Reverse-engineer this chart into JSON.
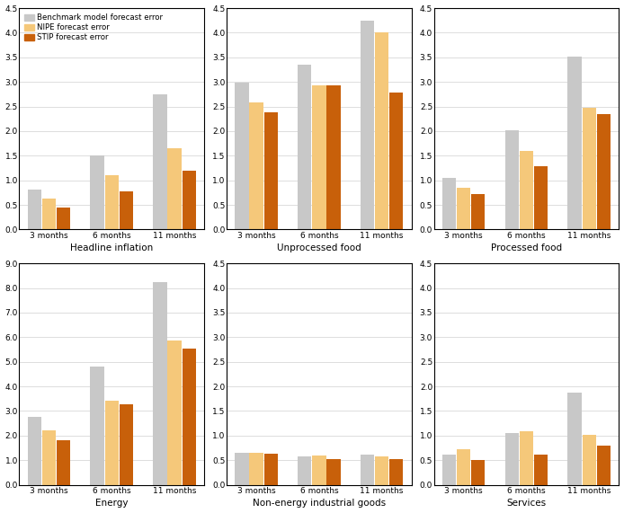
{
  "subplots": [
    {
      "title": "Headline inflation",
      "ylim": [
        0,
        4.5
      ],
      "yticks": [
        0.0,
        0.5,
        1.0,
        1.5,
        2.0,
        2.5,
        3.0,
        3.5,
        4.0,
        4.5
      ],
      "ytick_labels": [
        "0.0",
        "0.5",
        "1.0",
        "1.5",
        "2.0",
        "2.5",
        "3.0",
        "3.5",
        "4.0",
        "4.5"
      ],
      "benchmark": [
        0.82,
        1.5,
        2.75
      ],
      "nipe": [
        0.62,
        1.1,
        1.65
      ],
      "stip": [
        0.45,
        0.77,
        1.2
      ]
    },
    {
      "title": "Unprocessed food",
      "ylim": [
        0,
        4.5
      ],
      "yticks": [
        0.0,
        0.5,
        1.0,
        1.5,
        2.0,
        2.5,
        3.0,
        3.5,
        4.0,
        4.5
      ],
      "ytick_labels": [
        "0.0",
        "0.5",
        "1.0",
        "1.5",
        "2.0",
        "2.5",
        "3.0",
        "3.5",
        "4.0",
        "4.5"
      ],
      "benchmark": [
        2.98,
        3.35,
        4.25
      ],
      "nipe": [
        2.58,
        2.93,
        4.0
      ],
      "stip": [
        2.38,
        2.93,
        2.78
      ]
    },
    {
      "title": "Processed food",
      "ylim": [
        0,
        4.5
      ],
      "yticks": [
        0.0,
        0.5,
        1.0,
        1.5,
        2.0,
        2.5,
        3.0,
        3.5,
        4.0,
        4.5
      ],
      "ytick_labels": [
        "0.0",
        "0.5",
        "1.0",
        "1.5",
        "2.0",
        "2.5",
        "3.0",
        "3.5",
        "4.0",
        "4.5"
      ],
      "benchmark": [
        1.05,
        2.02,
        3.52
      ],
      "nipe": [
        0.85,
        1.6,
        2.48
      ],
      "stip": [
        0.72,
        1.28,
        2.35
      ]
    },
    {
      "title": "Energy",
      "ylim": [
        0,
        9.0
      ],
      "yticks": [
        0.0,
        1.0,
        2.0,
        3.0,
        4.0,
        5.0,
        6.0,
        7.0,
        8.0,
        9.0
      ],
      "ytick_labels": [
        "0.0",
        "1.0",
        "2.0",
        "3.0",
        "4.0",
        "5.0",
        "6.0",
        "7.0",
        "8.0",
        "9.0"
      ],
      "benchmark": [
        2.75,
        4.8,
        8.25
      ],
      "nipe": [
        2.2,
        3.4,
        5.88
      ],
      "stip": [
        1.82,
        3.28,
        5.55
      ]
    },
    {
      "title": "Non-energy industrial goods",
      "ylim": [
        0,
        4.5
      ],
      "yticks": [
        0.0,
        0.5,
        1.0,
        1.5,
        2.0,
        2.5,
        3.0,
        3.5,
        4.0,
        4.5
      ],
      "ytick_labels": [
        "0.0",
        "0.5",
        "1.0",
        "1.5",
        "2.0",
        "2.5",
        "3.0",
        "3.5",
        "4.0",
        "4.5"
      ],
      "benchmark": [
        0.65,
        0.58,
        0.62
      ],
      "nipe": [
        0.65,
        0.6,
        0.57
      ],
      "stip": [
        0.63,
        0.52,
        0.52
      ]
    },
    {
      "title": "Services",
      "ylim": [
        0,
        4.5
      ],
      "yticks": [
        0.0,
        0.5,
        1.0,
        1.5,
        2.0,
        2.5,
        3.0,
        3.5,
        4.0,
        4.5
      ],
      "ytick_labels": [
        "0.0",
        "0.5",
        "1.0",
        "1.5",
        "2.0",
        "2.5",
        "3.0",
        "3.5",
        "4.0",
        "4.5"
      ],
      "benchmark": [
        0.62,
        1.05,
        1.88
      ],
      "nipe": [
        0.72,
        1.08,
        1.02
      ],
      "stip": [
        0.5,
        0.62,
        0.8
      ]
    }
  ],
  "categories": [
    "3 months",
    "6 months",
    "11 months"
  ],
  "colors": {
    "benchmark": "#c8c8c8",
    "nipe": "#f5c87a",
    "stip": "#c8600a"
  },
  "legend_labels": [
    "Benchmark model forecast error",
    "NIPE forecast error",
    "STIP forecast error"
  ],
  "bar_width": 0.22,
  "background_color": "#ffffff"
}
